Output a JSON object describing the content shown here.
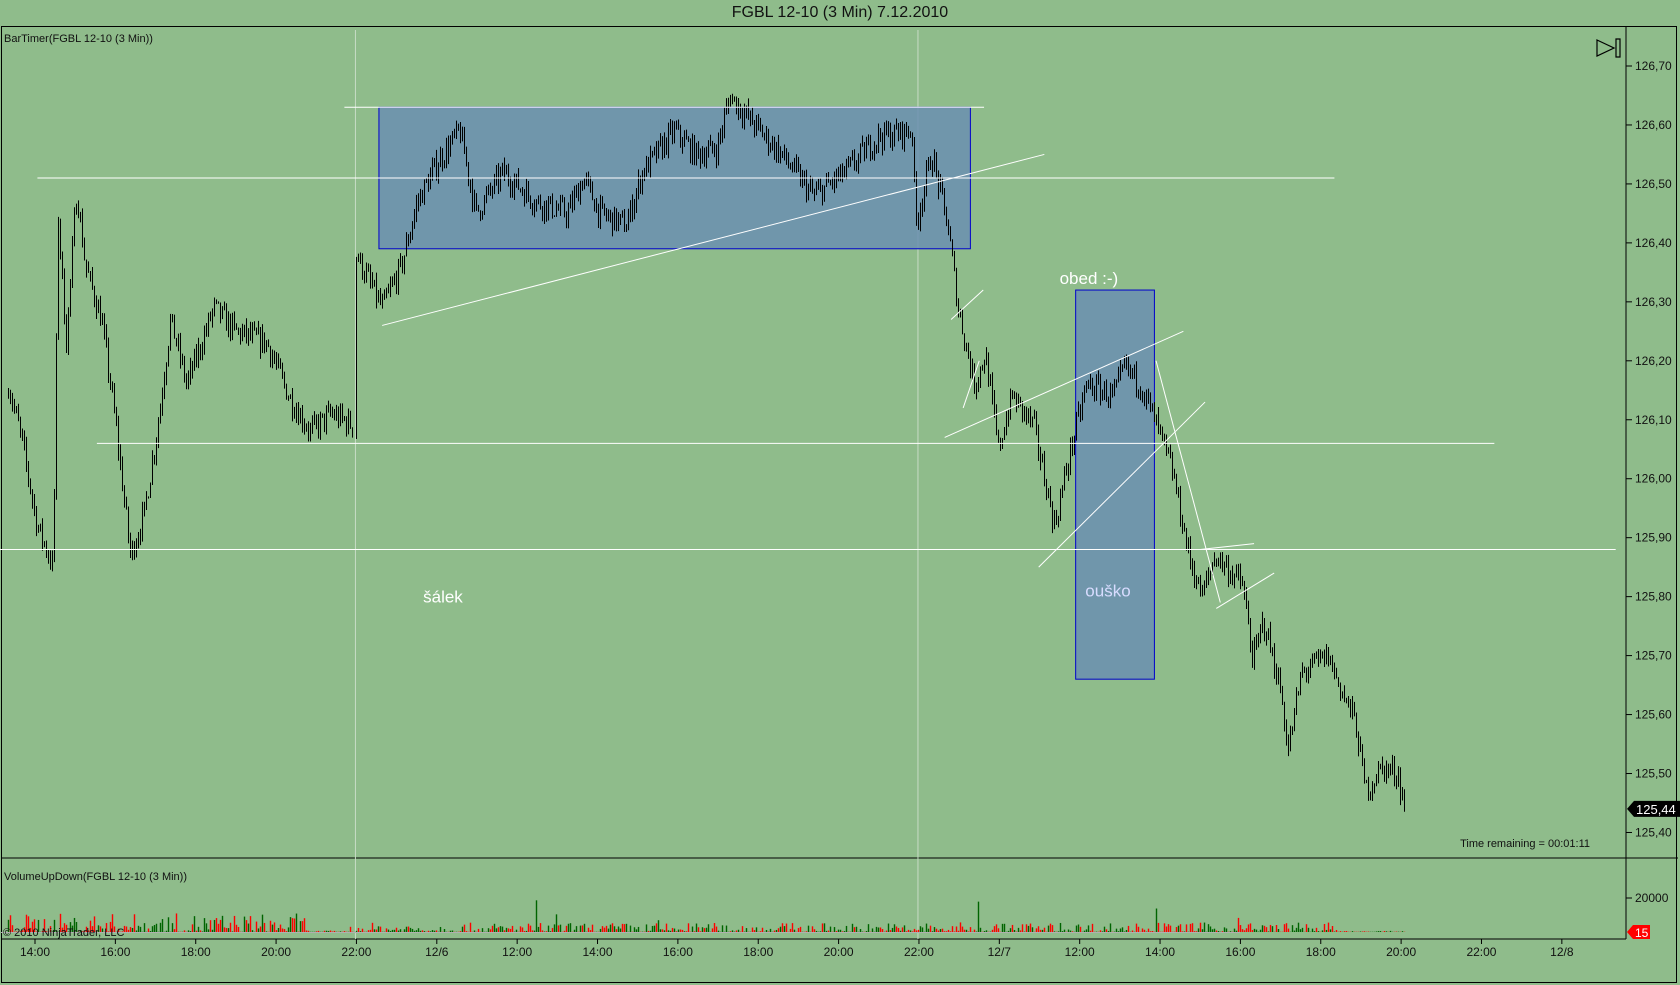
{
  "window_title": "FGBL 12-10 (3 Min)  7.12.2010",
  "indicators": {
    "price_panel_label": "BarTimer(FGBL 12-10 (3 Min))",
    "volume_panel_label": "VolumeUpDown(FGBL 12-10 (3 Min))",
    "time_remaining": "Time remaining = 00:01:11",
    "copyright": "© 2010 NinjaTrader, LLC"
  },
  "colors": {
    "background": "#8fbc8b",
    "up_volume": "#006400",
    "down_volume": "#ff0000",
    "box_fill": "#6b8fb0",
    "box_border": "#0000cc",
    "lines": "#ffffff",
    "bars": "#000000"
  },
  "toolbar": {
    "scroll_end_icon": "skip-to-end-icon"
  },
  "chart_data": {
    "type": "ohlc",
    "price_axis": {
      "ticks": [
        "126,70",
        "126,60",
        "126,50",
        "126,40",
        "126,30",
        "126,20",
        "126,10",
        "126,00",
        "125,90",
        "125,80",
        "125,70",
        "125,60",
        "125,50",
        "125,40"
      ],
      "range": [
        125.36,
        126.74
      ]
    },
    "last_price": "125,44",
    "time_axis": {
      "ticks": [
        "14:00",
        "16:00",
        "18:00",
        "20:00",
        "22:00",
        "12/6",
        "12:00",
        "14:00",
        "16:00",
        "18:00",
        "20:00",
        "22:00",
        "12/7",
        "12:00",
        "14:00",
        "16:00",
        "18:00",
        "20:00",
        "22:00",
        "12/8"
      ]
    },
    "price_path": [
      [
        -0.33,
        126.16
      ],
      [
        -0.17,
        126.07
      ],
      [
        0.03,
        125.92
      ],
      [
        0.23,
        125.85
      ],
      [
        0.29,
        126.45
      ],
      [
        0.39,
        126.23
      ],
      [
        0.52,
        126.49
      ],
      [
        0.63,
        126.36
      ],
      [
        0.83,
        126.27
      ],
      [
        1.0,
        126.1
      ],
      [
        1.19,
        125.87
      ],
      [
        1.36,
        125.94
      ],
      [
        1.53,
        126.09
      ],
      [
        1.69,
        126.27
      ],
      [
        1.89,
        126.16
      ],
      [
        2.23,
        126.29
      ],
      [
        2.49,
        126.25
      ],
      [
        2.89,
        126.23
      ],
      [
        3.16,
        126.14
      ],
      [
        3.43,
        126.08
      ],
      [
        3.69,
        126.11
      ],
      [
        3.96,
        126.09
      ],
      [
        4.0,
        126.38
      ],
      [
        4.32,
        126.29
      ],
      [
        4.56,
        126.36
      ],
      [
        4.76,
        126.47
      ],
      [
        5.03,
        126.54
      ],
      [
        5.29,
        126.59
      ],
      [
        5.49,
        126.45
      ],
      [
        5.83,
        126.52
      ],
      [
        6.23,
        126.47
      ],
      [
        6.63,
        126.45
      ],
      [
        6.83,
        126.51
      ],
      [
        7.03,
        126.45
      ],
      [
        7.36,
        126.43
      ],
      [
        7.56,
        126.52
      ],
      [
        7.96,
        126.59
      ],
      [
        8.23,
        126.55
      ],
      [
        8.49,
        126.56
      ],
      [
        8.65,
        126.65
      ],
      [
        8.89,
        126.61
      ],
      [
        9.29,
        126.55
      ],
      [
        9.69,
        126.48
      ],
      [
        10.09,
        126.52
      ],
      [
        10.49,
        126.58
      ],
      [
        10.92,
        126.59
      ],
      [
        10.96,
        126.43
      ],
      [
        11.16,
        126.55
      ],
      [
        11.36,
        126.43
      ],
      [
        11.49,
        126.29
      ],
      [
        11.69,
        126.16
      ],
      [
        11.83,
        126.21
      ],
      [
        11.99,
        126.05
      ],
      [
        12.16,
        126.14
      ],
      [
        12.43,
        126.09
      ],
      [
        12.69,
        125.92
      ],
      [
        12.89,
        126.05
      ],
      [
        13.09,
        126.16
      ],
      [
        13.43,
        126.14
      ],
      [
        13.56,
        126.19
      ],
      [
        13.76,
        126.16
      ],
      [
        13.96,
        126.09
      ],
      [
        14.16,
        126.01
      ],
      [
        14.36,
        125.87
      ],
      [
        14.52,
        125.8
      ],
      [
        14.69,
        125.87
      ],
      [
        15.03,
        125.82
      ],
      [
        15.16,
        125.69
      ],
      [
        15.29,
        125.76
      ],
      [
        15.49,
        125.65
      ],
      [
        15.6,
        125.54
      ],
      [
        15.76,
        125.67
      ],
      [
        16.09,
        125.7
      ],
      [
        16.29,
        125.63
      ],
      [
        16.43,
        125.59
      ],
      [
        16.56,
        125.47
      ],
      [
        16.76,
        125.51
      ],
      [
        16.96,
        125.5
      ],
      [
        17.05,
        125.44
      ]
    ],
    "volume_axis": {
      "ticks": [
        "20000"
      ],
      "last_volume": "15"
    },
    "volume_levels": [
      [
        -0.4,
        3.4,
        5000
      ],
      [
        3.4,
        4.0,
        400
      ],
      [
        4.0,
        11.0,
        2500
      ],
      [
        11.0,
        16.2,
        2600
      ],
      [
        16.2,
        17.1,
        300
      ]
    ]
  },
  "drawings": {
    "rectangles": [
      {
        "t1": 4.28,
        "t2": 11.64,
        "p1": 126.63,
        "p2": 126.39
      },
      {
        "t1": 12.95,
        "t2": 13.93,
        "p1": 126.32,
        "p2": 125.66
      }
    ],
    "horizontal_lines": [
      {
        "t1": 3.85,
        "t2": 11.81,
        "p": 126.63
      },
      {
        "t1": 0.03,
        "t2": 16.17,
        "p": 126.51
      },
      {
        "t1": 0.77,
        "t2": 18.16,
        "p": 126.06
      },
      {
        "t1": -0.44,
        "t2": 19.67,
        "p": 125.88
      }
    ],
    "trend_lines": [
      [
        4.32,
        126.26,
        12.56,
        126.55
      ],
      [
        11.32,
        126.07,
        14.29,
        126.25
      ],
      [
        12.49,
        125.85,
        14.56,
        126.13
      ],
      [
        11.4,
        126.27,
        11.8,
        126.32
      ],
      [
        13.95,
        126.2,
        14.75,
        125.79
      ],
      [
        14.5,
        125.88,
        15.17,
        125.89
      ],
      [
        14.7,
        125.78,
        15.42,
        125.84
      ],
      [
        11.55,
        126.12,
        11.75,
        126.2
      ]
    ],
    "texts": [
      {
        "key": "salek",
        "label": "šálek",
        "t": 4.83,
        "p": 125.79,
        "color": "#ffffff"
      },
      {
        "key": "obed",
        "label": "obed :-)",
        "t": 12.75,
        "p": 126.33,
        "color": "#ffffff"
      },
      {
        "key": "ousko",
        "label": "ouško",
        "t": 13.07,
        "p": 125.8,
        "color": "#d8dcff"
      }
    ]
  }
}
